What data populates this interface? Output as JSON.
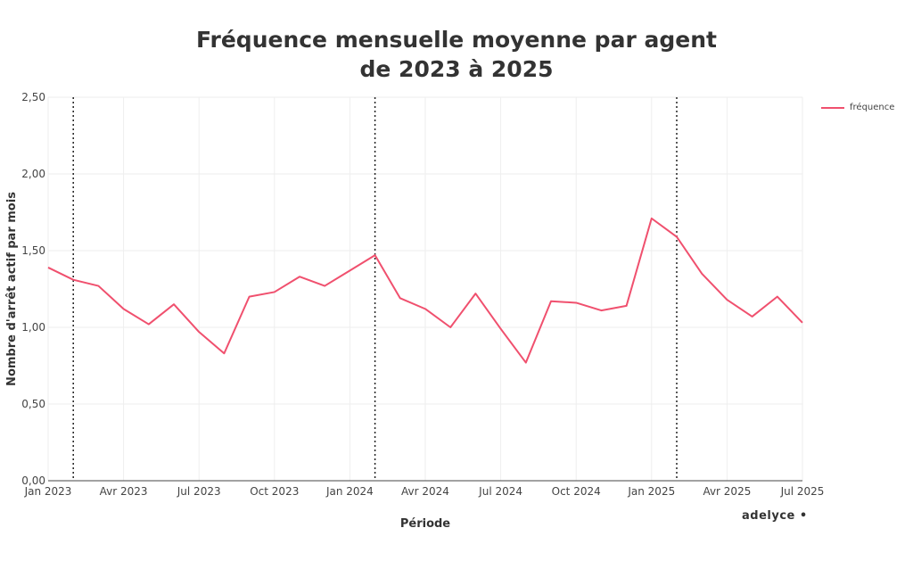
{
  "chart_data": {
    "type": "line",
    "title_line1": "Fréquence mensuelle moyenne par agent",
    "title_line2": "de 2023 à 2025",
    "xlabel": "Période",
    "ylabel": "Nombre d'arrêt actif par mois",
    "ylim": [
      0,
      2.5
    ],
    "y_ticks": [
      "0,00",
      "0,50",
      "1,00",
      "1,50",
      "2,00",
      "2,50"
    ],
    "x_ticks": [
      {
        "label": "Jan 2023",
        "index": 0
      },
      {
        "label": "Avr 2023",
        "index": 3
      },
      {
        "label": "Jul 2023",
        "index": 6
      },
      {
        "label": "Oct 2023",
        "index": 9
      },
      {
        "label": "Jan 2024",
        "index": 12
      },
      {
        "label": "Avr 2024",
        "index": 15
      },
      {
        "label": "Jul 2024",
        "index": 18
      },
      {
        "label": "Oct 2024",
        "index": 21
      },
      {
        "label": "Jan 2025",
        "index": 24
      },
      {
        "label": "Avr 2025",
        "index": 27
      },
      {
        "label": "Jul 2025",
        "index": 30
      }
    ],
    "vertical_markers_index": [
      1,
      13,
      25
    ],
    "grid": true,
    "legend_position": "top-right",
    "series": [
      {
        "name": "fréquence",
        "color": "#f0506e",
        "values": [
          1.39,
          1.31,
          1.27,
          1.12,
          1.02,
          1.15,
          0.97,
          0.83,
          1.2,
          1.23,
          1.33,
          1.27,
          1.37,
          1.47,
          1.19,
          1.12,
          1.0,
          1.22,
          0.99,
          0.77,
          1.17,
          1.16,
          1.11,
          1.14,
          1.71,
          1.59,
          1.35,
          1.18,
          1.07,
          1.2,
          1.03
        ]
      }
    ],
    "branding": "adelyce •"
  }
}
